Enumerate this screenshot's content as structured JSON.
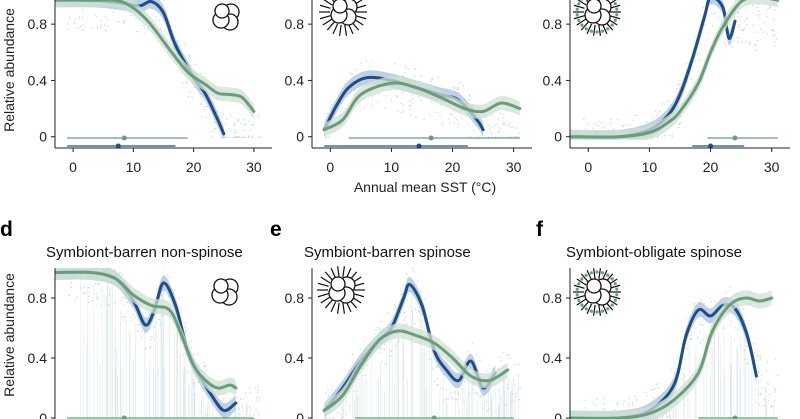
{
  "figure": {
    "y_axis_label": "Relative abundance",
    "x_axis_label": "Annual mean SST (°C)",
    "colors": {
      "blue": "#1f4e85",
      "green": "#6b9c7b",
      "blue_band": "#a9c2df",
      "green_band": "#cfe0d2",
      "scatter": "#8fb2c9"
    }
  },
  "chart_data": [
    {
      "type": "line",
      "panel": "a",
      "xlim": [
        -3,
        33
      ],
      "ylim": [
        -0.08,
        1.0
      ],
      "xticks": [
        "0",
        "10",
        "20",
        "30"
      ],
      "yticks": [
        "0",
        "0.4",
        "0.8"
      ],
      "icon": "foram-nonspinose-icon",
      "series": [
        {
          "name": "blue",
          "x": [
            -3,
            3,
            8,
            11,
            13,
            15,
            17,
            20,
            22,
            24,
            25
          ],
          "y": [
            0.97,
            0.97,
            0.95,
            0.93,
            0.96,
            0.88,
            0.65,
            0.42,
            0.3,
            0.12,
            0.02
          ]
        },
        {
          "name": "green",
          "x": [
            -3,
            3,
            8,
            12,
            16,
            19,
            22,
            24,
            26,
            28,
            30
          ],
          "y": [
            0.97,
            0.97,
            0.96,
            0.84,
            0.62,
            0.46,
            0.37,
            0.31,
            0.3,
            0.28,
            0.18
          ]
        }
      ],
      "ranges": [
        {
          "name": "green",
          "lo": -1,
          "mid": 8.5,
          "hi": 19
        },
        {
          "name": "blue",
          "lo": -1,
          "mid": 7.5,
          "hi": 17
        }
      ]
    },
    {
      "type": "line",
      "panel": "b",
      "xlim": [
        -3,
        33
      ],
      "ylim": [
        -0.08,
        1.0
      ],
      "xticks": [
        "0",
        "10",
        "20",
        "30"
      ],
      "yticks": [
        "0",
        "0.4",
        "0.8"
      ],
      "icon": "foram-spinose-icon",
      "series": [
        {
          "name": "blue",
          "x": [
            -1,
            1,
            3,
            6,
            10,
            14,
            18,
            21,
            24,
            25
          ],
          "y": [
            0.05,
            0.22,
            0.35,
            0.42,
            0.4,
            0.35,
            0.3,
            0.26,
            0.12,
            0.05
          ]
        },
        {
          "name": "green",
          "x": [
            -1,
            2,
            5,
            10,
            14,
            18,
            22,
            25,
            28,
            31
          ],
          "y": [
            0.05,
            0.12,
            0.3,
            0.38,
            0.35,
            0.28,
            0.2,
            0.18,
            0.24,
            0.2
          ]
        }
      ],
      "ranges": [
        {
          "name": "green",
          "lo": 3,
          "mid": 16.5,
          "hi": 31
        },
        {
          "name": "blue",
          "lo": -1,
          "mid": 14.5,
          "hi": 22.5
        }
      ]
    },
    {
      "type": "line",
      "panel": "c",
      "xlim": [
        -3,
        33
      ],
      "ylim": [
        -0.08,
        1.0
      ],
      "xticks": [
        "0",
        "10",
        "20",
        "30"
      ],
      "yticks": [
        "0",
        "0.4",
        "0.8"
      ],
      "icon": "foram-spinose-symbiont-icon",
      "series": [
        {
          "name": "blue",
          "x": [
            -3,
            5,
            10,
            13,
            15,
            17,
            19,
            20,
            22,
            23,
            24
          ],
          "y": [
            0.0,
            0.0,
            0.05,
            0.15,
            0.3,
            0.55,
            0.85,
            0.99,
            0.92,
            0.7,
            0.82
          ]
        },
        {
          "name": "green",
          "x": [
            -3,
            5,
            10,
            13,
            15,
            18,
            20,
            22,
            25,
            28,
            31
          ],
          "y": [
            0.0,
            0.0,
            0.03,
            0.1,
            0.18,
            0.38,
            0.6,
            0.78,
            0.96,
            0.99,
            0.97
          ]
        }
      ],
      "ranges": [
        {
          "name": "green",
          "lo": 19.5,
          "mid": 24,
          "hi": 31
        },
        {
          "name": "blue",
          "lo": 17,
          "mid": 20,
          "hi": 25.5
        }
      ]
    },
    {
      "type": "line",
      "panel": "d",
      "label": "d",
      "title": "Symbiont-barren non-spinose",
      "xlim": [
        -3,
        33
      ],
      "ylim": [
        -0.08,
        1.0
      ],
      "xticks": [],
      "yticks": [
        "0",
        "0.4",
        "0.8"
      ],
      "icon": "foram-nonspinose-icon",
      "series": [
        {
          "name": "blue",
          "x": [
            -3,
            3,
            7,
            10,
            12,
            13.5,
            15,
            17,
            19,
            21,
            23,
            25,
            27
          ],
          "y": [
            0.97,
            0.97,
            0.93,
            0.78,
            0.62,
            0.72,
            0.9,
            0.75,
            0.45,
            0.28,
            0.15,
            0.05,
            0.1
          ]
        },
        {
          "name": "green",
          "x": [
            -3,
            3,
            7,
            10,
            13,
            16,
            18,
            20,
            22,
            24,
            26,
            27
          ],
          "y": [
            0.97,
            0.97,
            0.93,
            0.82,
            0.75,
            0.72,
            0.55,
            0.35,
            0.25,
            0.2,
            0.22,
            0.2
          ]
        }
      ],
      "ranges": [
        {
          "name": "green",
          "lo": -1,
          "mid": 8.5,
          "hi": 30
        }
      ]
    },
    {
      "type": "line",
      "panel": "e",
      "label": "e",
      "title": "Symbiont-barren spinose",
      "xlim": [
        -3,
        33
      ],
      "ylim": [
        -0.08,
        1.0
      ],
      "xticks": [],
      "yticks": [
        "0",
        "0.4",
        "0.8"
      ],
      "icon": "foram-spinose-icon",
      "series": [
        {
          "name": "blue",
          "x": [
            -1,
            2,
            5,
            8,
            10,
            12,
            13,
            15,
            17,
            19,
            21,
            23,
            25,
            27
          ],
          "y": [
            0.05,
            0.2,
            0.38,
            0.52,
            0.6,
            0.8,
            0.89,
            0.75,
            0.45,
            0.32,
            0.25,
            0.38,
            0.2,
            0.3
          ]
        },
        {
          "name": "green",
          "x": [
            -1,
            2,
            5,
            8,
            11,
            14,
            17,
            20,
            23,
            26,
            29
          ],
          "y": [
            0.05,
            0.15,
            0.35,
            0.52,
            0.58,
            0.55,
            0.5,
            0.4,
            0.28,
            0.25,
            0.32
          ]
        }
      ],
      "ranges": [
        {
          "name": "green",
          "lo": 4,
          "mid": 17,
          "hi": 30
        }
      ]
    },
    {
      "type": "line",
      "panel": "f",
      "label": "f",
      "title": "Symbiont-obligate spinose",
      "xlim": [
        -3,
        33
      ],
      "ylim": [
        -0.08,
        1.0
      ],
      "xticks": [],
      "yticks": [
        "0",
        "0.4",
        "0.8"
      ],
      "icon": "foram-spinose-symbiont-icon",
      "series": [
        {
          "name": "blue",
          "x": [
            -3,
            5,
            10,
            14,
            16,
            18,
            20,
            22,
            24,
            26,
            27.5
          ],
          "y": [
            0.0,
            0.0,
            0.05,
            0.22,
            0.55,
            0.72,
            0.68,
            0.75,
            0.73,
            0.55,
            0.28
          ]
        },
        {
          "name": "green",
          "x": [
            -3,
            5,
            10,
            14,
            18,
            20,
            22,
            24,
            26,
            28,
            30
          ],
          "y": [
            0.0,
            0.0,
            0.03,
            0.12,
            0.3,
            0.55,
            0.7,
            0.78,
            0.8,
            0.78,
            0.8
          ]
        }
      ],
      "ranges": [
        {
          "name": "green",
          "lo": 18,
          "mid": 24,
          "hi": 31
        }
      ]
    }
  ]
}
